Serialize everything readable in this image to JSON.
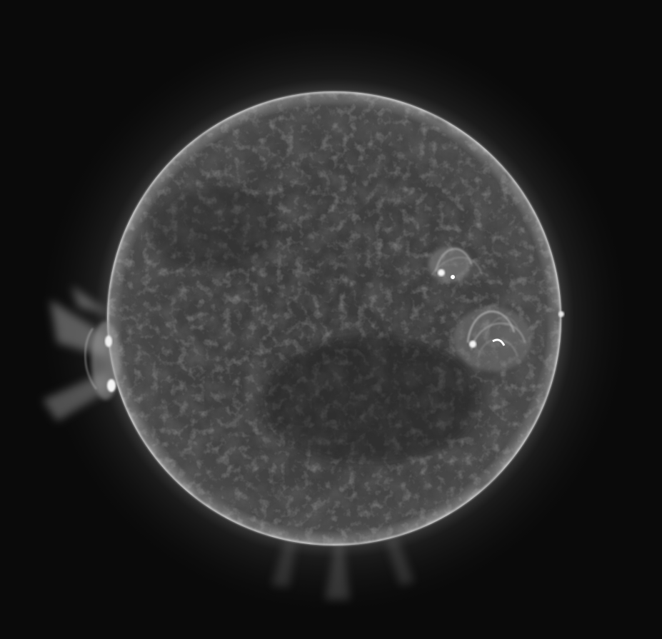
{
  "image": {
    "subject": "sun-full-disk",
    "colors": {
      "background": "#0a0a0a",
      "disk": "#404040",
      "disk_dark": "#2a2a2a",
      "limb": "#d8d8d8",
      "corona": "#9a9a9a",
      "active_region": "#f5f5f5"
    }
  }
}
